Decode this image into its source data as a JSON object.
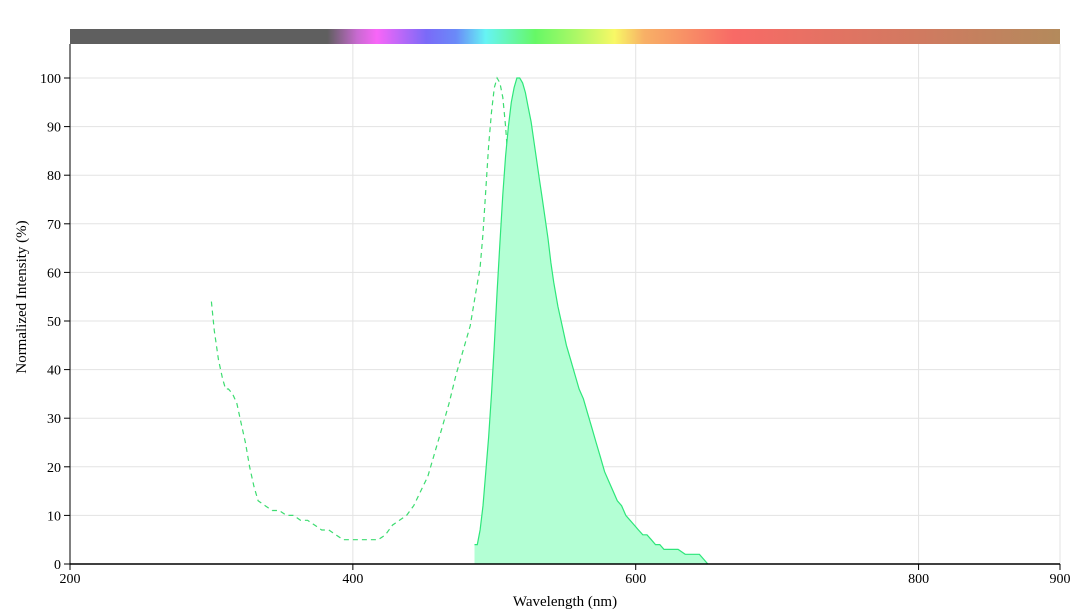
{
  "chart_data": {
    "type": "area",
    "title": "",
    "xlabel": "Wavelength (nm)",
    "ylabel": "Normalized Intensity (%)",
    "xlim": [
      200,
      900
    ],
    "ylim": [
      0,
      100
    ],
    "x_ticks": [
      "200",
      "400",
      "600",
      "800",
      "900"
    ],
    "y_ticks": [
      "0",
      "10",
      "20",
      "30",
      "40",
      "50",
      "60",
      "70",
      "80",
      "90",
      "100"
    ],
    "grid": true,
    "legend": "none",
    "spectrum_bar": true,
    "series": [
      {
        "style": "dashed",
        "color": "#3ddc70",
        "points": [
          [
            300,
            54
          ],
          [
            302,
            48
          ],
          [
            305,
            42
          ],
          [
            308,
            38
          ],
          [
            310,
            36
          ],
          [
            312,
            36
          ],
          [
            315,
            35
          ],
          [
            318,
            33
          ],
          [
            321,
            29
          ],
          [
            324,
            25
          ],
          [
            327,
            20
          ],
          [
            330,
            16
          ],
          [
            333,
            13
          ],
          [
            338,
            12
          ],
          [
            343,
            11
          ],
          [
            348,
            11
          ],
          [
            353,
            10
          ],
          [
            358,
            10
          ],
          [
            363,
            9
          ],
          [
            368,
            9
          ],
          [
            373,
            8
          ],
          [
            378,
            7
          ],
          [
            383,
            7
          ],
          [
            388,
            6
          ],
          [
            393,
            5
          ],
          [
            398,
            5
          ],
          [
            403,
            5
          ],
          [
            408,
            5
          ],
          [
            413,
            5
          ],
          [
            418,
            5
          ],
          [
            423,
            6
          ],
          [
            428,
            8
          ],
          [
            433,
            9
          ],
          [
            438,
            10
          ],
          [
            443,
            12
          ],
          [
            448,
            15
          ],
          [
            453,
            18
          ],
          [
            458,
            23
          ],
          [
            463,
            28
          ],
          [
            468,
            33
          ],
          [
            473,
            39
          ],
          [
            478,
            44
          ],
          [
            483,
            49
          ],
          [
            487,
            56
          ],
          [
            490,
            61
          ],
          [
            492,
            68
          ],
          [
            494,
            77
          ],
          [
            496,
            86
          ],
          [
            498,
            93
          ],
          [
            500,
            98
          ],
          [
            502,
            100
          ],
          [
            504,
            99
          ],
          [
            506,
            96
          ],
          [
            508,
            90
          ],
          [
            510,
            82
          ],
          [
            512,
            72
          ],
          [
            514,
            60
          ],
          [
            516,
            48
          ],
          [
            518,
            38
          ],
          [
            520,
            29
          ],
          [
            522,
            21
          ],
          [
            525,
            15
          ],
          [
            528,
            10
          ],
          [
            531,
            6
          ],
          [
            534,
            4
          ],
          [
            538,
            2
          ],
          [
            542,
            1
          ],
          [
            546,
            1
          ],
          [
            550,
            1
          ]
        ]
      },
      {
        "style": "filled",
        "color": "#2ee67a",
        "fill": "#b3ffd4",
        "points": [
          [
            486,
            4
          ],
          [
            488,
            4
          ],
          [
            490,
            7
          ],
          [
            492,
            12
          ],
          [
            494,
            19
          ],
          [
            496,
            26
          ],
          [
            498,
            35
          ],
          [
            500,
            45
          ],
          [
            502,
            56
          ],
          [
            504,
            66
          ],
          [
            506,
            76
          ],
          [
            508,
            84
          ],
          [
            510,
            90
          ],
          [
            512,
            95
          ],
          [
            514,
            98
          ],
          [
            516,
            100
          ],
          [
            518,
            100
          ],
          [
            520,
            99
          ],
          [
            522,
            97
          ],
          [
            524,
            94
          ],
          [
            526,
            91
          ],
          [
            528,
            87
          ],
          [
            530,
            83
          ],
          [
            532,
            79
          ],
          [
            534,
            75
          ],
          [
            536,
            71
          ],
          [
            538,
            67
          ],
          [
            540,
            62
          ],
          [
            542,
            58
          ],
          [
            545,
            53
          ],
          [
            548,
            49
          ],
          [
            551,
            45
          ],
          [
            554,
            42
          ],
          [
            557,
            39
          ],
          [
            560,
            36
          ],
          [
            563,
            34
          ],
          [
            566,
            31
          ],
          [
            569,
            28
          ],
          [
            572,
            25
          ],
          [
            575,
            22
          ],
          [
            578,
            19
          ],
          [
            581,
            17
          ],
          [
            584,
            15
          ],
          [
            587,
            13
          ],
          [
            590,
            12
          ],
          [
            593,
            10
          ],
          [
            596,
            9
          ],
          [
            599,
            8
          ],
          [
            602,
            7
          ],
          [
            605,
            6
          ],
          [
            608,
            6
          ],
          [
            611,
            5
          ],
          [
            614,
            4
          ],
          [
            617,
            4
          ],
          [
            620,
            3
          ],
          [
            625,
            3
          ],
          [
            630,
            3
          ],
          [
            635,
            2
          ],
          [
            640,
            2
          ],
          [
            645,
            2
          ],
          [
            648,
            1
          ],
          [
            651,
            0
          ]
        ]
      }
    ]
  }
}
